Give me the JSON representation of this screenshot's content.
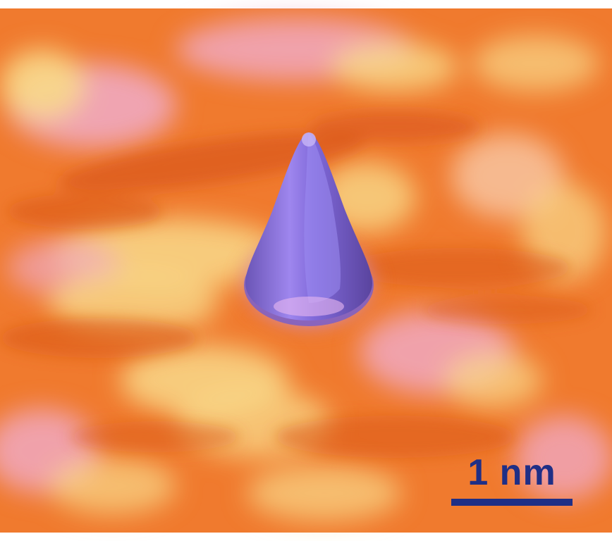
{
  "image": {
    "colors": {
      "surface_base": "#f07a2e",
      "surface_dark": "#d9571a",
      "surface_highlight": "#f8d98a",
      "surface_pink": "#f0a8c0",
      "tip_light": "#c8a6f0",
      "tip_mid": "#8f72dc",
      "tip_dark": "#6a55b8",
      "scale_color": "#1f2f86"
    },
    "scale_bar": {
      "label": "1 nm"
    }
  }
}
